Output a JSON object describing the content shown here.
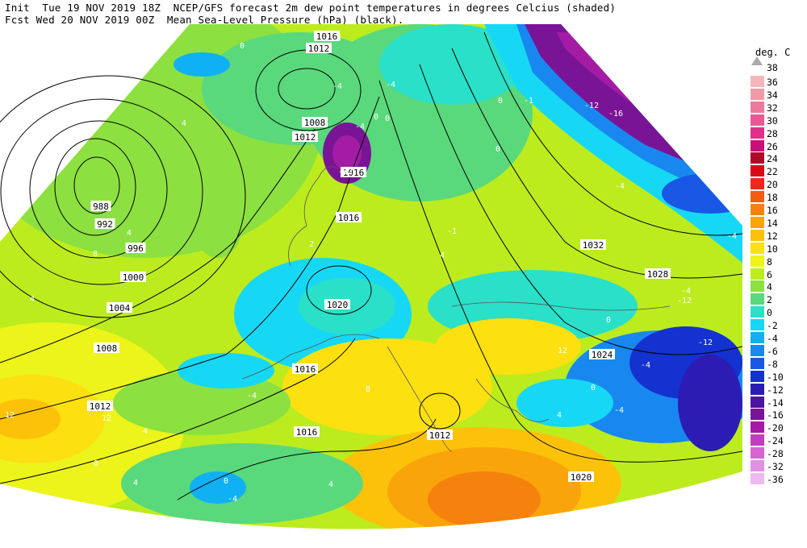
{
  "header": {
    "line1": "Init  Tue 19 NOV 2019 18Z  NCEP/GFS forecast 2m dew point temperatures in degrees Celcius (shaded)",
    "line2": "Fcst Wed 20 NOV 2019 00Z  Mean Sea-Level Pressure (hPa) (black)."
  },
  "legend": {
    "unit": "deg. C",
    "top_label": "38",
    "entries": [
      {
        "label": "36",
        "color": "#f4b6bb"
      },
      {
        "label": "34",
        "color": "#f09aa8"
      },
      {
        "label": "32",
        "color": "#ec7a9c"
      },
      {
        "label": "30",
        "color": "#e85a94"
      },
      {
        "label": "28",
        "color": "#e0308a"
      },
      {
        "label": "26",
        "color": "#c8107a"
      },
      {
        "label": "24",
        "color": "#b00a2a"
      },
      {
        "label": "22",
        "color": "#d80a18"
      },
      {
        "label": "20",
        "color": "#f0281a"
      },
      {
        "label": "18",
        "color": "#f45c14"
      },
      {
        "label": "16",
        "color": "#f6820e"
      },
      {
        "label": "14",
        "color": "#f8a40a"
      },
      {
        "label": "12",
        "color": "#fcc20a"
      },
      {
        "label": "10",
        "color": "#fce010"
      },
      {
        "label": "8",
        "color": "#ecf41a"
      },
      {
        "label": "6",
        "color": "#bcec1e"
      },
      {
        "label": "4",
        "color": "#8ce040"
      },
      {
        "label": "2",
        "color": "#5ad87c"
      },
      {
        "label": "0",
        "color": "#2ae0c8"
      },
      {
        "label": "-2",
        "color": "#16d8f4"
      },
      {
        "label": "-4",
        "color": "#10b0f4"
      },
      {
        "label": "-6",
        "color": "#1888f0"
      },
      {
        "label": "-8",
        "color": "#1858e4"
      },
      {
        "label": "-10",
        "color": "#1432d0"
      },
      {
        "label": "-12",
        "color": "#2c1cb4"
      },
      {
        "label": "-14",
        "color": "#4c14a4"
      },
      {
        "label": "-16",
        "color": "#7a1496"
      },
      {
        "label": "-20",
        "color": "#a41ca4"
      },
      {
        "label": "-24",
        "color": "#c43cc0"
      },
      {
        "label": "-28",
        "color": "#d864d4"
      },
      {
        "label": "-32",
        "color": "#e490e4"
      },
      {
        "label": "-36",
        "color": "#f0b8f0"
      }
    ]
  },
  "isobar_labels": [
    "1016",
    "1012",
    "1008",
    "1012",
    "988",
    "992",
    "996",
    "1000",
    "1004",
    "1008",
    "1012",
    "1016",
    "1016",
    "1020",
    "1016",
    "1016",
    "1012",
    "1032",
    "1028",
    "1024",
    "1020"
  ],
  "dewpoint_labels": [
    "0",
    "4",
    "4",
    "-4",
    "-1",
    "-12",
    "-16",
    "0",
    "0",
    "-12",
    "4",
    "8",
    "4",
    "2",
    "4",
    "-4",
    "-12",
    "-4",
    "-4",
    "-12",
    "0",
    "12",
    "-4",
    "0",
    "4",
    "8",
    "12",
    "12",
    "4",
    "8",
    "4",
    "0",
    "-4",
    "-4",
    "4",
    "-4",
    "-4",
    "0",
    "-4",
    "0",
    "-1"
  ]
}
